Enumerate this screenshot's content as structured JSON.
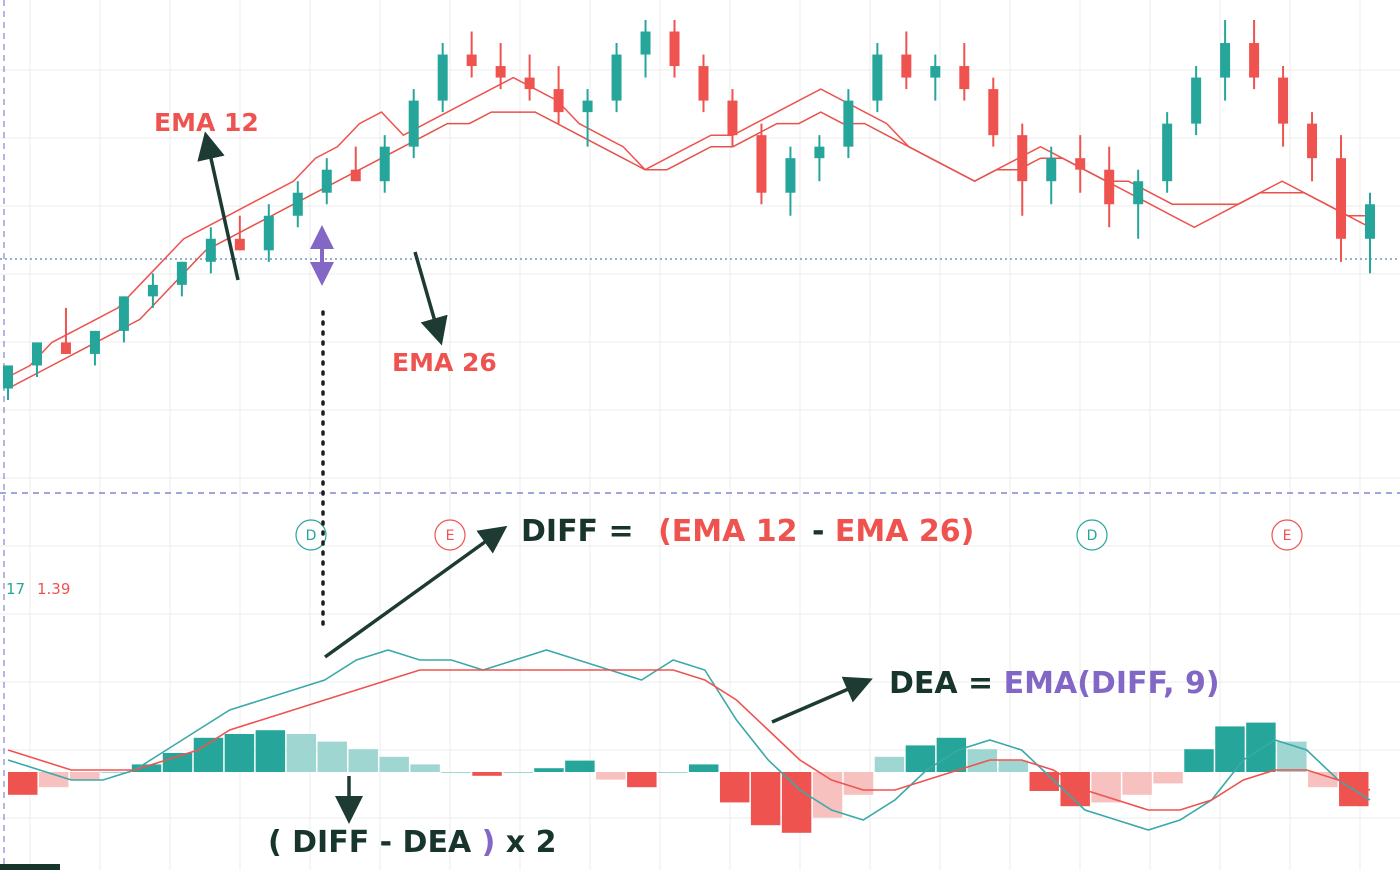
{
  "annotations": {
    "ema12_label": "EMA 12",
    "ema26_label": "EMA 26",
    "diff_prefix": "DIFF = ",
    "diff_formula_a": "(EMA 12",
    "diff_minus": " - ",
    "diff_formula_b": "EMA 26)",
    "dea_prefix": "DEA = ",
    "dea_formula": "EMA(DIFF, 9)",
    "hist_open": "( DIFF - DEA ",
    "hist_close": ")",
    "hist_mult": " x 2",
    "macd_value_left": "17",
    "macd_value_right": "1.39",
    "event_markers": [
      "D",
      "E",
      "D",
      "E"
    ]
  },
  "colors": {
    "up": "#26a69a",
    "down": "#ef5350",
    "ema12": "#ef5350",
    "ema26": "#e5534b",
    "diff_line": "#3ba9a9",
    "dea_line": "#ef5350",
    "arrow": "#1d3b32",
    "purple": "#8367c7",
    "label_red": "#ef5350",
    "dark_green_text": "#17352d",
    "grid": "#ececec",
    "separator": "#6b6fc4"
  },
  "chart_data": [
    {
      "type": "candlestick",
      "series": [
        {
          "name": "EMA 12",
          "values": [
            2,
            3,
            5,
            6,
            7,
            8,
            10,
            12,
            14,
            15,
            16,
            17,
            18,
            19,
            21,
            22,
            24,
            25,
            23,
            24,
            25,
            26,
            27,
            28,
            27,
            26,
            24,
            23,
            22,
            20,
            21,
            22,
            23,
            23,
            24,
            25,
            26,
            27,
            26,
            25,
            24,
            22,
            21,
            20,
            19,
            20,
            21,
            22,
            21,
            20,
            19,
            18,
            17,
            16,
            15,
            16,
            17,
            18,
            19,
            18,
            17,
            16,
            15
          ]
        },
        {
          "name": "EMA 26",
          "values": [
            1,
            2,
            3,
            4,
            5,
            6,
            7,
            9,
            11,
            13,
            14,
            15,
            16,
            17,
            18,
            19,
            20,
            21,
            22,
            23,
            24,
            24,
            25,
            25,
            25,
            24,
            23,
            22,
            21,
            20,
            20,
            21,
            22,
            22,
            23,
            24,
            24,
            25,
            24,
            24,
            23,
            22,
            21,
            20,
            19,
            20,
            20,
            21,
            21,
            20,
            19,
            19,
            18,
            17,
            17,
            17,
            17,
            18,
            18,
            18,
            17,
            16,
            16
          ]
        }
      ],
      "candles": [
        {
          "o": 1,
          "h": 3,
          "l": 0,
          "c": 3
        },
        {
          "o": 3,
          "h": 5,
          "l": 2,
          "c": 5
        },
        {
          "o": 5,
          "h": 8,
          "l": 4,
          "c": 4
        },
        {
          "o": 4,
          "h": 6,
          "l": 3,
          "c": 6
        },
        {
          "o": 6,
          "h": 9,
          "l": 5,
          "c": 9
        },
        {
          "o": 9,
          "h": 11,
          "l": 8,
          "c": 10
        },
        {
          "o": 10,
          "h": 12,
          "l": 9,
          "c": 12
        },
        {
          "o": 12,
          "h": 15,
          "l": 11,
          "c": 14
        },
        {
          "o": 14,
          "h": 16,
          "l": 13,
          "c": 13
        },
        {
          "o": 13,
          "h": 17,
          "l": 12,
          "c": 16
        },
        {
          "o": 16,
          "h": 19,
          "l": 15,
          "c": 18
        },
        {
          "o": 18,
          "h": 21,
          "l": 17,
          "c": 20
        },
        {
          "o": 20,
          "h": 22,
          "l": 19,
          "c": 19
        },
        {
          "o": 19,
          "h": 23,
          "l": 18,
          "c": 22
        },
        {
          "o": 22,
          "h": 27,
          "l": 21,
          "c": 26
        },
        {
          "o": 26,
          "h": 31,
          "l": 25,
          "c": 30
        },
        {
          "o": 30,
          "h": 32,
          "l": 28,
          "c": 29
        },
        {
          "o": 29,
          "h": 31,
          "l": 27,
          "c": 28
        },
        {
          "o": 28,
          "h": 30,
          "l": 26,
          "c": 27
        },
        {
          "o": 27,
          "h": 29,
          "l": 24,
          "c": 25
        },
        {
          "o": 25,
          "h": 27,
          "l": 22,
          "c": 26
        },
        {
          "o": 26,
          "h": 31,
          "l": 25,
          "c": 30
        },
        {
          "o": 30,
          "h": 33,
          "l": 28,
          "c": 32
        },
        {
          "o": 32,
          "h": 33,
          "l": 28,
          "c": 29
        },
        {
          "o": 29,
          "h": 30,
          "l": 25,
          "c": 26
        },
        {
          "o": 26,
          "h": 27,
          "l": 22,
          "c": 23
        },
        {
          "o": 23,
          "h": 24,
          "l": 17,
          "c": 18
        },
        {
          "o": 18,
          "h": 22,
          "l": 16,
          "c": 21
        },
        {
          "o": 21,
          "h": 23,
          "l": 19,
          "c": 22
        },
        {
          "o": 22,
          "h": 27,
          "l": 21,
          "c": 26
        },
        {
          "o": 26,
          "h": 31,
          "l": 25,
          "c": 30
        },
        {
          "o": 30,
          "h": 32,
          "l": 27,
          "c": 28
        },
        {
          "o": 28,
          "h": 30,
          "l": 26,
          "c": 29
        },
        {
          "o": 29,
          "h": 31,
          "l": 26,
          "c": 27
        },
        {
          "o": 27,
          "h": 28,
          "l": 22,
          "c": 23
        },
        {
          "o": 23,
          "h": 24,
          "l": 16,
          "c": 19
        },
        {
          "o": 19,
          "h": 22,
          "l": 17,
          "c": 21
        },
        {
          "o": 21,
          "h": 23,
          "l": 18,
          "c": 20
        },
        {
          "o": 20,
          "h": 22,
          "l": 15,
          "c": 17
        },
        {
          "o": 17,
          "h": 20,
          "l": 14,
          "c": 19
        },
        {
          "o": 19,
          "h": 25,
          "l": 18,
          "c": 24
        },
        {
          "o": 24,
          "h": 29,
          "l": 23,
          "c": 28
        },
        {
          "o": 28,
          "h": 33,
          "l": 26,
          "c": 31
        },
        {
          "o": 31,
          "h": 33,
          "l": 27,
          "c": 28
        },
        {
          "o": 28,
          "h": 29,
          "l": 22,
          "c": 24
        },
        {
          "o": 24,
          "h": 25,
          "l": 19,
          "c": 21
        },
        {
          "o": 21,
          "h": 23,
          "l": 12,
          "c": 14
        },
        {
          "o": 14,
          "h": 18,
          "l": 11,
          "c": 17
        }
      ],
      "macd": {
        "diff": [
          8,
          7,
          6,
          6,
          7,
          9,
          11,
          13,
          14,
          15,
          16,
          18,
          19,
          18,
          18,
          17,
          18,
          19,
          18,
          17,
          16,
          18,
          17,
          12,
          8,
          5,
          3,
          2,
          4,
          7,
          9,
          10,
          9,
          6,
          3,
          2,
          1,
          2,
          4,
          8,
          10,
          9,
          6,
          4
        ],
        "dea": [
          9,
          8,
          7,
          7,
          7,
          8,
          9,
          11,
          12,
          13,
          14,
          15,
          16,
          17,
          17,
          17,
          17,
          17,
          17,
          17,
          17,
          17,
          16,
          14,
          11,
          8,
          6,
          5,
          5,
          6,
          7,
          8,
          8,
          7,
          5,
          4,
          3,
          3,
          4,
          6,
          7,
          7,
          6,
          5
        ],
        "histogram": [
          -0.6,
          -0.4,
          -0.2,
          0,
          0.2,
          0.5,
          0.9,
          1.0,
          1.1,
          1.0,
          0.8,
          0.6,
          0.4,
          0.2,
          0,
          -0.1,
          0,
          0.1,
          0.3,
          -0.2,
          -0.4,
          0,
          0.2,
          -0.8,
          -1.4,
          -1.6,
          -1.2,
          -0.6,
          0.4,
          0.7,
          0.9,
          0.6,
          0.3,
          -0.5,
          -0.9,
          -0.8,
          -0.6,
          -0.3,
          0.6,
          1.2,
          1.3,
          0.8,
          -0.4,
          -0.9
        ]
      }
    }
  ]
}
